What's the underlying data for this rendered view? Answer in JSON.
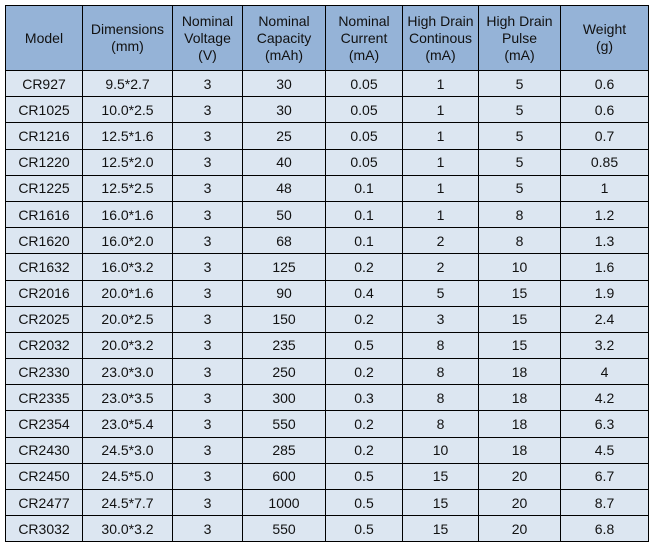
{
  "headers": [
    [
      "Model"
    ],
    [
      "Dimensions",
      "(mm)"
    ],
    [
      "Nominal",
      "Voltage",
      "(V)"
    ],
    [
      "Nominal",
      "Capacity",
      "(mAh)"
    ],
    [
      "Nominal",
      "Current",
      "(mA)"
    ],
    [
      "High Drain",
      "Continous",
      "(mA)"
    ],
    [
      "High Drain",
      "Pulse",
      "(mA)"
    ],
    [
      "Weight",
      "(g)"
    ]
  ],
  "rows": [
    [
      "CR927",
      "9.5*2.7",
      "3",
      "30",
      "0.05",
      "1",
      "5",
      "0.6"
    ],
    [
      "CR1025",
      "10.0*2.5",
      "3",
      "30",
      "0.05",
      "1",
      "5",
      "0.6"
    ],
    [
      "CR1216",
      "12.5*1.6",
      "3",
      "25",
      "0.05",
      "1",
      "5",
      "0.7"
    ],
    [
      "CR1220",
      "12.5*2.0",
      "3",
      "40",
      "0.05",
      "1",
      "5",
      "0.85"
    ],
    [
      "CR1225",
      "12.5*2.5",
      "3",
      "48",
      "0.1",
      "1",
      "5",
      "1"
    ],
    [
      "CR1616",
      "16.0*1.6",
      "3",
      "50",
      "0.1",
      "1",
      "8",
      "1.2"
    ],
    [
      "CR1620",
      "16.0*2.0",
      "3",
      "68",
      "0.1",
      "2",
      "8",
      "1.3"
    ],
    [
      "CR1632",
      "16.0*3.2",
      "3",
      "125",
      "0.2",
      "2",
      "10",
      "1.6"
    ],
    [
      "CR2016",
      "20.0*1.6",
      "3",
      "90",
      "0.4",
      "5",
      "15",
      "1.9"
    ],
    [
      "CR2025",
      "20.0*2.5",
      "3",
      "150",
      "0.2",
      "3",
      "15",
      "2.4"
    ],
    [
      "CR2032",
      "20.0*3.2",
      "3",
      "235",
      "0.5",
      "8",
      "15",
      "3.2"
    ],
    [
      "CR2330",
      "23.0*3.0",
      "3",
      "250",
      "0.2",
      "8",
      "18",
      "4"
    ],
    [
      "CR2335",
      "23.0*3.5",
      "3",
      "300",
      "0.3",
      "8",
      "18",
      "4.2"
    ],
    [
      "CR2354",
      "23.0*5.4",
      "3",
      "550",
      "0.2",
      "8",
      "18",
      "6.3"
    ],
    [
      "CR2430",
      "24.5*3.0",
      "3",
      "285",
      "0.2",
      "10",
      "18",
      "4.5"
    ],
    [
      "CR2450",
      "24.5*5.0",
      "3",
      "600",
      "0.5",
      "15",
      "20",
      "6.7"
    ],
    [
      "CR2477",
      "24.5*7.7",
      "3",
      "1000",
      "0.5",
      "15",
      "20",
      "8.7"
    ],
    [
      "CR3032",
      "30.0*3.2",
      "3",
      "550",
      "0.5",
      "15",
      "20",
      "6.8"
    ]
  ],
  "colors": {
    "header_bg": "#95b3d7",
    "row_bg": "#dce6f1"
  }
}
